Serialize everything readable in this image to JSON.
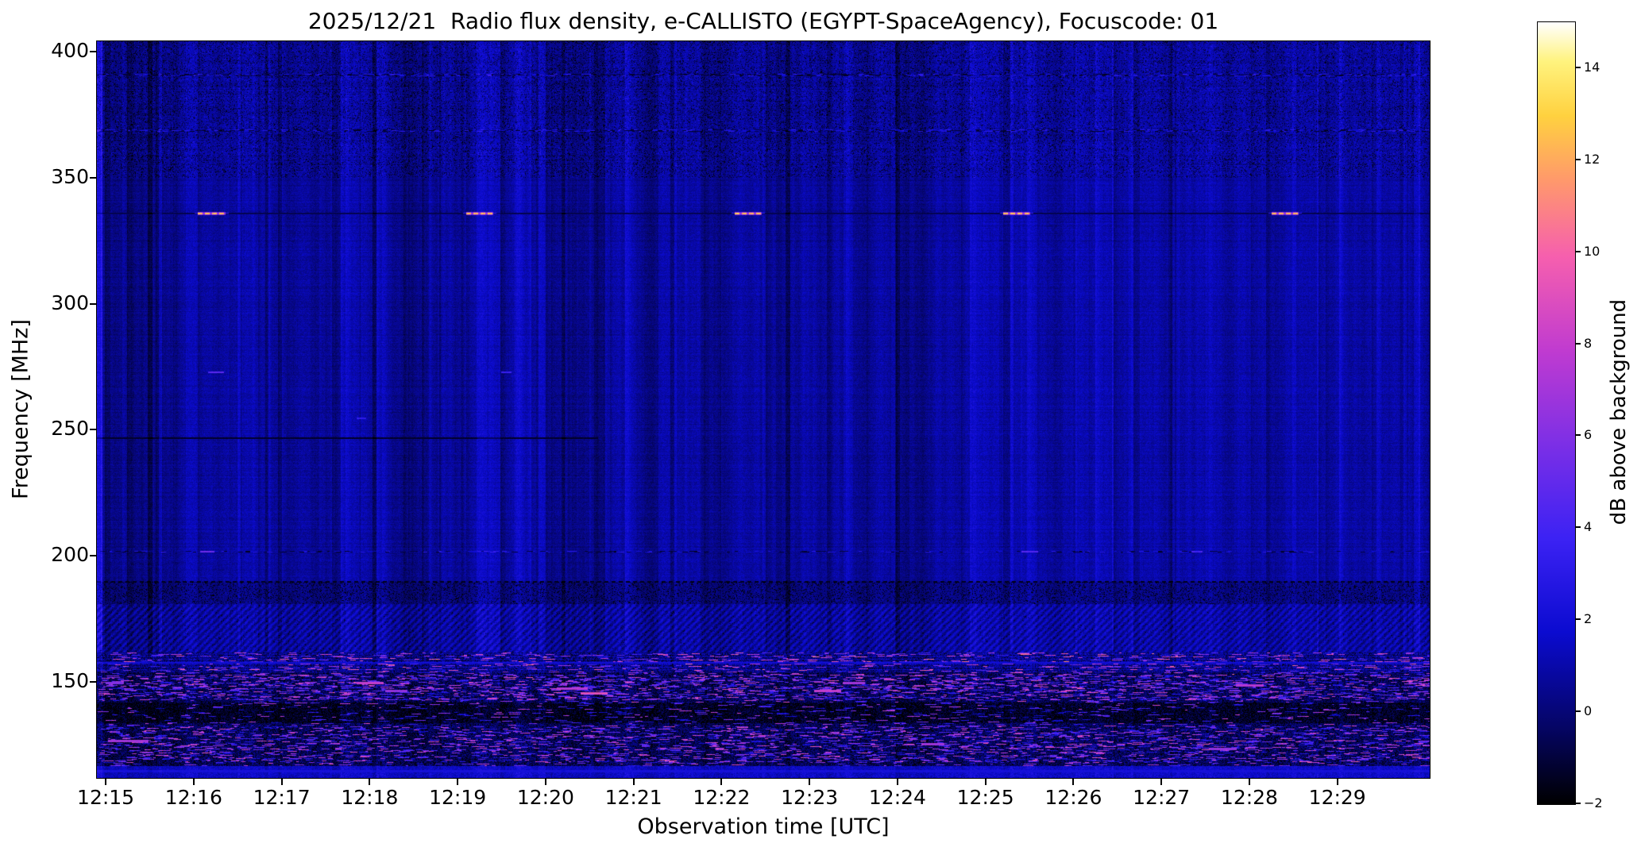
{
  "chart_data": {
    "type": "heatmap",
    "title": "2025/12/21  Radio flux density, e-CALLISTO (EGYPT-SpaceAgency), Focuscode: 01",
    "date": "2025/12/21",
    "instrument": "e-CALLISTO (EGYPT-SpaceAgency)",
    "focuscode": "01",
    "xlabel": "Observation time [UTC]",
    "ylabel": "Frequency [MHz]",
    "colorbar_label": "dB above background",
    "x_axis": {
      "unit": "minutes after 12:15 UTC",
      "range": [
        -0.1,
        15.05
      ],
      "tick_minutes": [
        0,
        1,
        2,
        3,
        4,
        5,
        6,
        7,
        8,
        9,
        10,
        11,
        12,
        13,
        14
      ],
      "tick_labels": [
        "12:15",
        "12:16",
        "12:17",
        "12:18",
        "12:19",
        "12:20",
        "12:21",
        "12:22",
        "12:23",
        "12:24",
        "12:25",
        "12:26",
        "12:27",
        "12:28",
        "12:29"
      ]
    },
    "y_axis": {
      "unit": "MHz",
      "range": [
        404,
        112
      ],
      "ticks": [
        400,
        350,
        300,
        250,
        200,
        150
      ]
    },
    "colorbar": {
      "range_db": [
        -2,
        15
      ],
      "ticks": [
        -2,
        0,
        2,
        4,
        6,
        8,
        10,
        12,
        14
      ],
      "tick_labels": [
        "−2",
        "0",
        "2",
        "4",
        "6",
        "8",
        "10",
        "12",
        "14"
      ],
      "stops": [
        {
          "t": 0.0,
          "c": "#000000"
        },
        {
          "t": 0.1,
          "c": "#050566"
        },
        {
          "t": 0.22,
          "c": "#0b0bd0"
        },
        {
          "t": 0.34,
          "c": "#3c22f4"
        },
        {
          "t": 0.46,
          "c": "#7c2fe6"
        },
        {
          "t": 0.58,
          "c": "#c03bd0"
        },
        {
          "t": 0.7,
          "c": "#f65fae"
        },
        {
          "t": 0.8,
          "c": "#ff9a6a"
        },
        {
          "t": 0.88,
          "c": "#ffd13f"
        },
        {
          "t": 0.95,
          "c": "#fff37e"
        },
        {
          "t": 1.0,
          "c": "#ffffff"
        }
      ]
    },
    "background_db": {
      "quiet_mean": 0.7,
      "noise_sigma": 0.5
    },
    "bands": [
      {
        "name": "upper-quiet",
        "f_range_mhz": [
          190,
          404
        ],
        "mean_db": 0.6,
        "note": "dark blue background with vertical instrumental stripes"
      },
      {
        "name": "transition",
        "f_range_mhz": [
          181,
          190
        ],
        "mean_db": 0.1,
        "note": "darker mottled strip"
      },
      {
        "name": "woven-rfi",
        "f_range_mhz": [
          162,
          181
        ],
        "mean_db": 0.8,
        "note": "woven texture interference band"
      },
      {
        "name": "broadcast-rfi",
        "f_range_mhz": [
          117,
          162
        ],
        "mean_db": -0.4,
        "note": "black background with bright magenta speckled RFI streaks"
      },
      {
        "name": "bottom-strip",
        "f_range_mhz": [
          112,
          117
        ],
        "mean_db": 1.5,
        "note": "brighter blue strip at bottom edge"
      }
    ],
    "h_lines": [
      {
        "f": 336,
        "t0": -0.1,
        "t1": 15.05,
        "db": -0.7,
        "h": 2,
        "dotted": false
      },
      {
        "f": 247,
        "t0": -0.1,
        "t1": 5.6,
        "db": -1.3,
        "h": 2,
        "dotted": false
      },
      {
        "f": 190,
        "t0": -0.1,
        "t1": 15.05,
        "db": -1.6,
        "h": 2,
        "dotted": true
      },
      {
        "f": 158,
        "t0": -0.1,
        "t1": 15.05,
        "db": 2.0,
        "h": 2,
        "dotted": false
      },
      {
        "f": 115,
        "t0": -0.1,
        "t1": 15.05,
        "db": 2.2,
        "h": 3,
        "dotted": false
      }
    ],
    "speckle_rows": [
      {
        "f": 391,
        "h": 3,
        "density": 0.5
      },
      {
        "f": 369,
        "h": 3,
        "density": 0.45
      },
      {
        "f": 202,
        "h": 2,
        "density": 0.3
      }
    ],
    "bursts_336mhz": [
      {
        "t_center": 1.2,
        "f": 336,
        "dur_min": 0.3,
        "peak_db": 11.5
      },
      {
        "t_center": 4.25,
        "f": 336,
        "dur_min": 0.3,
        "peak_db": 11.5
      },
      {
        "t_center": 7.3,
        "f": 336,
        "dur_min": 0.3,
        "peak_db": 11.5
      },
      {
        "t_center": 10.35,
        "f": 336,
        "dur_min": 0.3,
        "peak_db": 11.5
      },
      {
        "t_center": 13.4,
        "f": 336,
        "dur_min": 0.3,
        "peak_db": 11.5
      }
    ],
    "dashes": [
      {
        "t": 1.25,
        "f": 273,
        "len": 0.18,
        "db": 4.2,
        "h": 2
      },
      {
        "t": 1.15,
        "f": 202,
        "len": 0.15,
        "db": 4.8,
        "h": 2
      },
      {
        "t": 4.55,
        "f": 273,
        "len": 0.1,
        "db": 3.2,
        "h": 2
      },
      {
        "t": 10.5,
        "f": 202,
        "len": 0.18,
        "db": 4.0,
        "h": 2
      },
      {
        "t": 12.4,
        "f": 202,
        "len": 0.12,
        "db": 3.5,
        "h": 2
      },
      {
        "t": 2.9,
        "f": 255,
        "len": 0.1,
        "db": 2.8,
        "h": 2
      },
      {
        "t": 0.25,
        "f": 127,
        "len": 0.45,
        "db": 6.5,
        "h": 3
      },
      {
        "t": 0.1,
        "f": 150,
        "len": 0.2,
        "db": 5.5,
        "h": 3
      },
      {
        "t": 3.0,
        "f": 150,
        "len": 0.3,
        "db": 7.5,
        "h": 3
      },
      {
        "t": 3.3,
        "f": 147,
        "len": 0.25,
        "db": 6.0,
        "h": 3
      },
      {
        "t": 5.3,
        "f": 148,
        "len": 0.35,
        "db": 7.0,
        "h": 3
      },
      {
        "t": 5.55,
        "f": 146,
        "len": 0.3,
        "db": 8.5,
        "h": 3
      },
      {
        "t": 8.2,
        "f": 147,
        "len": 0.3,
        "db": 7.5,
        "h": 3
      },
      {
        "t": 8.5,
        "f": 150,
        "len": 0.25,
        "db": 6.5,
        "h": 3
      },
      {
        "t": 9.4,
        "f": 126,
        "len": 0.25,
        "db": 6.5,
        "h": 3
      },
      {
        "t": 12.7,
        "f": 124,
        "len": 0.3,
        "db": 6.0,
        "h": 3
      },
      {
        "t": 13.0,
        "f": 149,
        "len": 0.3,
        "db": 7.0,
        "h": 3
      }
    ],
    "v_stripes": [
      {
        "t": -0.08,
        "w": 0.06,
        "db": 1.8
      },
      {
        "t": 0.5,
        "w": 0.05,
        "db": -1.3
      },
      {
        "t": 0.62,
        "w": 0.03,
        "db": 1.2
      },
      {
        "t": 3.05,
        "w": 0.04,
        "db": -1.0
      },
      {
        "t": 4.35,
        "w": 0.25,
        "db": 0.9
      },
      {
        "t": 5.2,
        "w": 0.04,
        "db": -1.1
      },
      {
        "t": 7.75,
        "w": 0.05,
        "db": -1.2
      },
      {
        "t": 9.0,
        "w": 0.04,
        "db": -0.9
      },
      {
        "t": 12.1,
        "w": 0.04,
        "db": -0.8
      },
      {
        "t": 14.9,
        "w": 0.06,
        "db": 1.0
      }
    ]
  }
}
